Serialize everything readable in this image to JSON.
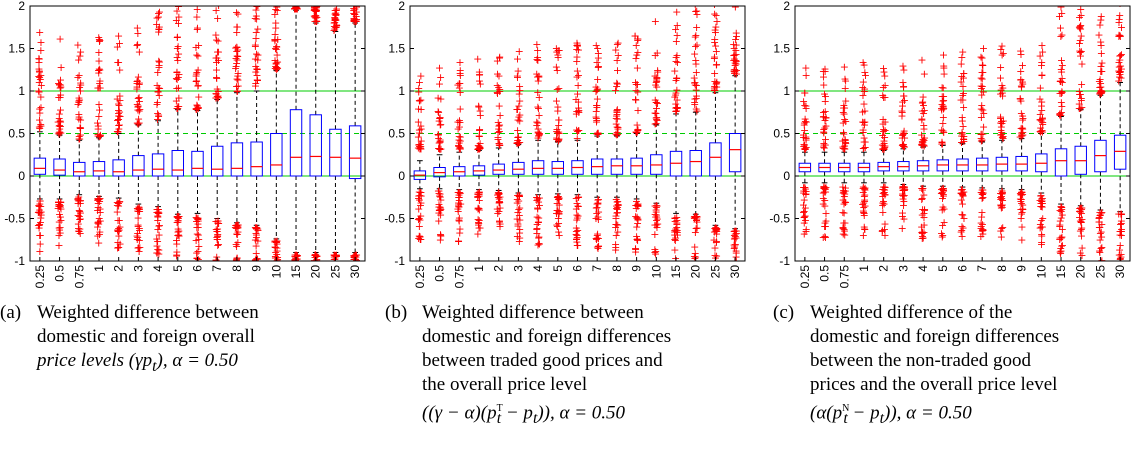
{
  "chart_data": [
    {
      "type": "box",
      "categories": [
        "0.25",
        "0.5",
        "0.75",
        "1",
        "2",
        "3",
        "4",
        "5",
        "6",
        "7",
        "8",
        "9",
        "10",
        "15",
        "20",
        "25",
        "30"
      ],
      "ylim": [
        -1,
        2
      ],
      "yticks": [
        "-1",
        "-0.5",
        "0",
        "0.5",
        "1",
        "1.5",
        "2"
      ],
      "reference_lines": [
        {
          "y": 1,
          "style": "solid"
        },
        {
          "y": 0.5,
          "style": "dashed"
        },
        {
          "y": 0,
          "style": "solid"
        }
      ],
      "boxes": [
        {
          "q1": 0.02,
          "median": 0.09,
          "q3": 0.21,
          "wmin": -0.27,
          "wmax": 0.52
        },
        {
          "q1": 0.01,
          "median": 0.07,
          "q3": 0.2,
          "wmin": -0.27,
          "wmax": 0.48
        },
        {
          "q1": 0.0,
          "median": 0.05,
          "q3": 0.16,
          "wmin": -0.22,
          "wmax": 0.42
        },
        {
          "q1": 0.0,
          "median": 0.06,
          "q3": 0.17,
          "wmin": -0.24,
          "wmax": 0.45
        },
        {
          "q1": 0.0,
          "median": 0.05,
          "q3": 0.19,
          "wmin": -0.26,
          "wmax": 0.5
        },
        {
          "q1": 0.0,
          "median": 0.07,
          "q3": 0.24,
          "wmin": -0.33,
          "wmax": 0.6
        },
        {
          "q1": 0.0,
          "median": 0.08,
          "q3": 0.26,
          "wmin": -0.36,
          "wmax": 0.65
        },
        {
          "q1": 0.0,
          "median": 0.07,
          "q3": 0.3,
          "wmin": -0.45,
          "wmax": 0.78
        },
        {
          "q1": 0.0,
          "median": 0.09,
          "q3": 0.29,
          "wmin": -0.44,
          "wmax": 0.77
        },
        {
          "q1": 0.0,
          "median": 0.08,
          "q3": 0.35,
          "wmin": -0.5,
          "wmax": 0.9
        },
        {
          "q1": 0.0,
          "median": 0.09,
          "q3": 0.39,
          "wmin": -0.55,
          "wmax": 0.98
        },
        {
          "q1": 0.0,
          "median": 0.11,
          "q3": 0.4,
          "wmin": -0.58,
          "wmax": 1.0
        },
        {
          "q1": 0.0,
          "median": 0.13,
          "q3": 0.5,
          "wmin": -0.74,
          "wmax": 1.24
        },
        {
          "q1": 0.0,
          "median": 0.22,
          "q3": 0.78,
          "wmin": -0.9,
          "wmax": 1.95
        },
        {
          "q1": 0.0,
          "median": 0.23,
          "q3": 0.72,
          "wmin": -0.9,
          "wmax": 1.8
        },
        {
          "q1": 0.0,
          "median": 0.22,
          "q3": 0.55,
          "wmin": -0.9,
          "wmax": 1.7
        },
        {
          "q1": -0.03,
          "median": 0.21,
          "q3": 0.59,
          "wmin": -0.9,
          "wmax": 1.8
        }
      ]
    },
    {
      "type": "box",
      "categories": [
        "0.25",
        "0.5",
        "0.75",
        "1",
        "2",
        "3",
        "4",
        "5",
        "6",
        "7",
        "8",
        "9",
        "10",
        "15",
        "20",
        "25",
        "30"
      ],
      "ylim": [
        -1,
        2
      ],
      "yticks": [
        "-1",
        "-0.5",
        "0",
        "0.5",
        "1",
        "1.5",
        "2"
      ],
      "reference_lines": [
        {
          "y": 1,
          "style": "solid"
        },
        {
          "y": 0.5,
          "style": "dashed"
        },
        {
          "y": 0,
          "style": "solid"
        }
      ],
      "boxes": [
        {
          "q1": -0.04,
          "median": 0.01,
          "q3": 0.06,
          "wmin": -0.15,
          "wmax": 0.18
        },
        {
          "q1": -0.01,
          "median": 0.04,
          "q3": 0.1,
          "wmin": -0.15,
          "wmax": 0.25
        },
        {
          "q1": 0.0,
          "median": 0.05,
          "q3": 0.11,
          "wmin": -0.16,
          "wmax": 0.28
        },
        {
          "q1": 0.01,
          "median": 0.06,
          "q3": 0.12,
          "wmin": -0.16,
          "wmax": 0.3
        },
        {
          "q1": 0.02,
          "median": 0.07,
          "q3": 0.14,
          "wmin": -0.17,
          "wmax": 0.33
        },
        {
          "q1": 0.02,
          "median": 0.08,
          "q3": 0.16,
          "wmin": -0.2,
          "wmax": 0.37
        },
        {
          "q1": 0.02,
          "median": 0.09,
          "q3": 0.18,
          "wmin": -0.22,
          "wmax": 0.42
        },
        {
          "q1": 0.02,
          "median": 0.09,
          "q3": 0.17,
          "wmin": -0.21,
          "wmax": 0.4
        },
        {
          "q1": 0.02,
          "median": 0.1,
          "q3": 0.18,
          "wmin": -0.22,
          "wmax": 0.42
        },
        {
          "q1": 0.02,
          "median": 0.11,
          "q3": 0.2,
          "wmin": -0.25,
          "wmax": 0.47
        },
        {
          "q1": 0.02,
          "median": 0.12,
          "q3": 0.2,
          "wmin": -0.25,
          "wmax": 0.47
        },
        {
          "q1": 0.02,
          "median": 0.12,
          "q3": 0.21,
          "wmin": -0.27,
          "wmax": 0.5
        },
        {
          "q1": 0.02,
          "median": 0.13,
          "q3": 0.25,
          "wmin": -0.32,
          "wmax": 0.6
        },
        {
          "q1": 0.0,
          "median": 0.15,
          "q3": 0.29,
          "wmin": -0.44,
          "wmax": 0.73
        },
        {
          "q1": 0.0,
          "median": 0.17,
          "q3": 0.3,
          "wmin": -0.45,
          "wmax": 0.75
        },
        {
          "q1": 0.0,
          "median": 0.22,
          "q3": 0.39,
          "wmin": -0.58,
          "wmax": 0.98
        },
        {
          "q1": 0.05,
          "median": 0.31,
          "q3": 0.5,
          "wmin": -0.62,
          "wmax": 1.18
        }
      ]
    },
    {
      "type": "box",
      "categories": [
        "0.25",
        "0.5",
        "0.75",
        "1",
        "2",
        "3",
        "4",
        "5",
        "6",
        "7",
        "8",
        "9",
        "10",
        "15",
        "20",
        "25",
        "30"
      ],
      "ylim": [
        -1,
        2
      ],
      "yticks": [
        "-1",
        "-0.5",
        "0",
        "0.5",
        "1",
        "1.5",
        "2"
      ],
      "reference_lines": [
        {
          "y": 1,
          "style": "solid"
        },
        {
          "y": 0.5,
          "style": "dashed"
        },
        {
          "y": 0,
          "style": "solid"
        }
      ],
      "boxes": [
        {
          "q1": 0.05,
          "median": 0.1,
          "q3": 0.15,
          "wmin": -0.08,
          "wmax": 0.28
        },
        {
          "q1": 0.05,
          "median": 0.1,
          "q3": 0.15,
          "wmin": -0.08,
          "wmax": 0.28
        },
        {
          "q1": 0.05,
          "median": 0.1,
          "q3": 0.15,
          "wmin": -0.08,
          "wmax": 0.28
        },
        {
          "q1": 0.05,
          "median": 0.1,
          "q3": 0.15,
          "wmin": -0.08,
          "wmax": 0.28
        },
        {
          "q1": 0.06,
          "median": 0.11,
          "q3": 0.16,
          "wmin": -0.08,
          "wmax": 0.3
        },
        {
          "q1": 0.06,
          "median": 0.11,
          "q3": 0.17,
          "wmin": -0.1,
          "wmax": 0.32
        },
        {
          "q1": 0.06,
          "median": 0.12,
          "q3": 0.18,
          "wmin": -0.12,
          "wmax": 0.34
        },
        {
          "q1": 0.06,
          "median": 0.13,
          "q3": 0.19,
          "wmin": -0.12,
          "wmax": 0.36
        },
        {
          "q1": 0.06,
          "median": 0.13,
          "q3": 0.2,
          "wmin": -0.13,
          "wmax": 0.38
        },
        {
          "q1": 0.06,
          "median": 0.13,
          "q3": 0.21,
          "wmin": -0.14,
          "wmax": 0.4
        },
        {
          "q1": 0.06,
          "median": 0.14,
          "q3": 0.22,
          "wmin": -0.15,
          "wmax": 0.42
        },
        {
          "q1": 0.06,
          "median": 0.14,
          "q3": 0.23,
          "wmin": -0.16,
          "wmax": 0.44
        },
        {
          "q1": 0.05,
          "median": 0.15,
          "q3": 0.26,
          "wmin": -0.2,
          "wmax": 0.5
        },
        {
          "q1": 0.0,
          "median": 0.18,
          "q3": 0.32,
          "wmin": -0.33,
          "wmax": 0.7
        },
        {
          "q1": 0.02,
          "median": 0.18,
          "q3": 0.35,
          "wmin": -0.35,
          "wmax": 0.78
        },
        {
          "q1": 0.05,
          "median": 0.24,
          "q3": 0.42,
          "wmin": -0.4,
          "wmax": 0.95
        },
        {
          "q1": 0.08,
          "median": 0.29,
          "q3": 0.48,
          "wmin": -0.42,
          "wmax": 1.1
        }
      ]
    }
  ],
  "captions": [
    {
      "label": "(a)",
      "lines": [
        "Weighted difference between",
        "domestic and foreign overall",
        "price levels (γp",
        "t",
        "), α = 0.50"
      ]
    },
    {
      "label": "(b)",
      "lines": [
        "Weighted difference between",
        "domestic and foreign differences",
        "between traded good prices and",
        "the overall price level",
        "((γ − α)(p",
        "T",
        "t",
        " − p",
        "t",
        ")), α = 0.50"
      ]
    },
    {
      "label": "(c)",
      "lines": [
        "Weighted difference of the",
        "domestic and foreign differences",
        "between the non-traded good",
        "prices and the overall price level",
        "(α(p",
        "N",
        "t",
        " − p",
        "t",
        ")), α = 0.50"
      ]
    }
  ],
  "colors": {
    "box": "#0000ff",
    "median": "#ff0000",
    "outlier": "#ff0000",
    "reference": "#00cc00",
    "whisker": "#000000"
  }
}
